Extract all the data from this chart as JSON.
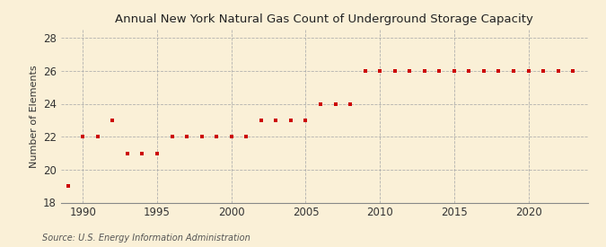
{
  "title": "Annual New York Natural Gas Count of Underground Storage Capacity",
  "ylabel": "Number of Elements",
  "source": "Source: U.S. Energy Information Administration",
  "background_color": "#faf0d7",
  "plot_background_color": "#faf0d7",
  "marker_color": "#cc0000",
  "marker": "s",
  "marker_size": 3.5,
  "xlim": [
    1988.5,
    2024
  ],
  "ylim": [
    18,
    28.5
  ],
  "yticks": [
    18,
    20,
    22,
    24,
    26,
    28
  ],
  "xticks": [
    1990,
    1995,
    2000,
    2005,
    2010,
    2015,
    2020
  ],
  "data": {
    "1989": 19,
    "1990": 22,
    "1991": 22,
    "1992": 23,
    "1993": 21,
    "1994": 21,
    "1995": 21,
    "1996": 22,
    "1997": 22,
    "1998": 22,
    "1999": 22,
    "2000": 22,
    "2001": 22,
    "2002": 23,
    "2003": 23,
    "2004": 23,
    "2005": 23,
    "2006": 24,
    "2007": 24,
    "2008": 24,
    "2009": 26,
    "2010": 26,
    "2011": 26,
    "2012": 26,
    "2013": 26,
    "2014": 26,
    "2015": 26,
    "2016": 26,
    "2017": 26,
    "2018": 26,
    "2019": 26,
    "2020": 26,
    "2021": 26,
    "2022": 26,
    "2023": 26
  }
}
